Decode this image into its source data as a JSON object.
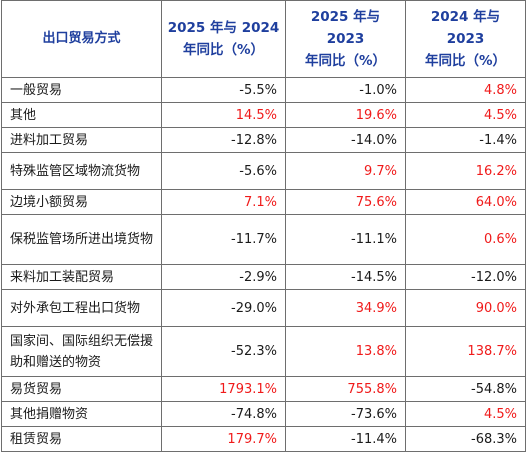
{
  "table": {
    "headers": [
      "出口贸易方式",
      "2025 年与 2024 年同比（%）",
      "2025 年与 2023 年同比（%）",
      "2024 年与 2023 年同比（%）"
    ],
    "header_lines": [
      [
        "出口贸易方式"
      ],
      [
        "2025 年与 2024",
        "年同比（%）"
      ],
      [
        "2025 年与 2023",
        "年同比（%）"
      ],
      [
        "2024 年与 2023",
        "年同比（%）"
      ]
    ],
    "rows": [
      {
        "name": "一般贸易",
        "values": [
          "-5.5%",
          "-1.0%",
          "4.8%"
        ],
        "colors": [
          "black",
          "black",
          "red"
        ]
      },
      {
        "name": "其他",
        "values": [
          "14.5%",
          "19.6%",
          "4.5%"
        ],
        "colors": [
          "red",
          "red",
          "red"
        ]
      },
      {
        "name": "进料加工贸易",
        "values": [
          "-12.8%",
          "-14.0%",
          "-1.4%"
        ],
        "colors": [
          "black",
          "black",
          "black"
        ]
      },
      {
        "name": "特殊监管区域物流货物",
        "values": [
          "-5.6%",
          "9.7%",
          "16.2%"
        ],
        "colors": [
          "black",
          "red",
          "red"
        ]
      },
      {
        "name": "边境小额贸易",
        "values": [
          "7.1%",
          "75.6%",
          "64.0%"
        ],
        "colors": [
          "red",
          "red",
          "red"
        ]
      },
      {
        "name": "保税监管场所进出境货物",
        "values": [
          "-11.7%",
          "-11.1%",
          "0.6%"
        ],
        "colors": [
          "black",
          "black",
          "red"
        ]
      },
      {
        "name": "来料加工装配贸易",
        "values": [
          "-2.9%",
          "-14.5%",
          "-12.0%"
        ],
        "colors": [
          "black",
          "black",
          "black"
        ]
      },
      {
        "name": "对外承包工程出口货物",
        "values": [
          "-29.0%",
          "34.9%",
          "90.0%"
        ],
        "colors": [
          "black",
          "red",
          "red"
        ]
      },
      {
        "name": "国家间、国际组织无偿援助和赠送的物资",
        "values": [
          "-52.3%",
          "13.8%",
          "138.7%"
        ],
        "colors": [
          "black",
          "red",
          "red"
        ]
      },
      {
        "name": "易货贸易",
        "values": [
          "1793.1%",
          "755.8%",
          "-54.8%"
        ],
        "colors": [
          "red",
          "red",
          "black"
        ]
      },
      {
        "name": "其他捐赠物资",
        "values": [
          "-74.8%",
          "-73.6%",
          "4.5%"
        ],
        "colors": [
          "black",
          "black",
          "red"
        ]
      },
      {
        "name": "租赁贸易",
        "values": [
          "179.7%",
          "-11.4%",
          "-68.3%"
        ],
        "colors": [
          "red",
          "black",
          "black"
        ]
      }
    ]
  },
  "colors": {
    "header_text": "#1f3f9e",
    "positive": "#f01a1a",
    "negative": "#1a1a1a",
    "border": "#6e6e6e"
  }
}
